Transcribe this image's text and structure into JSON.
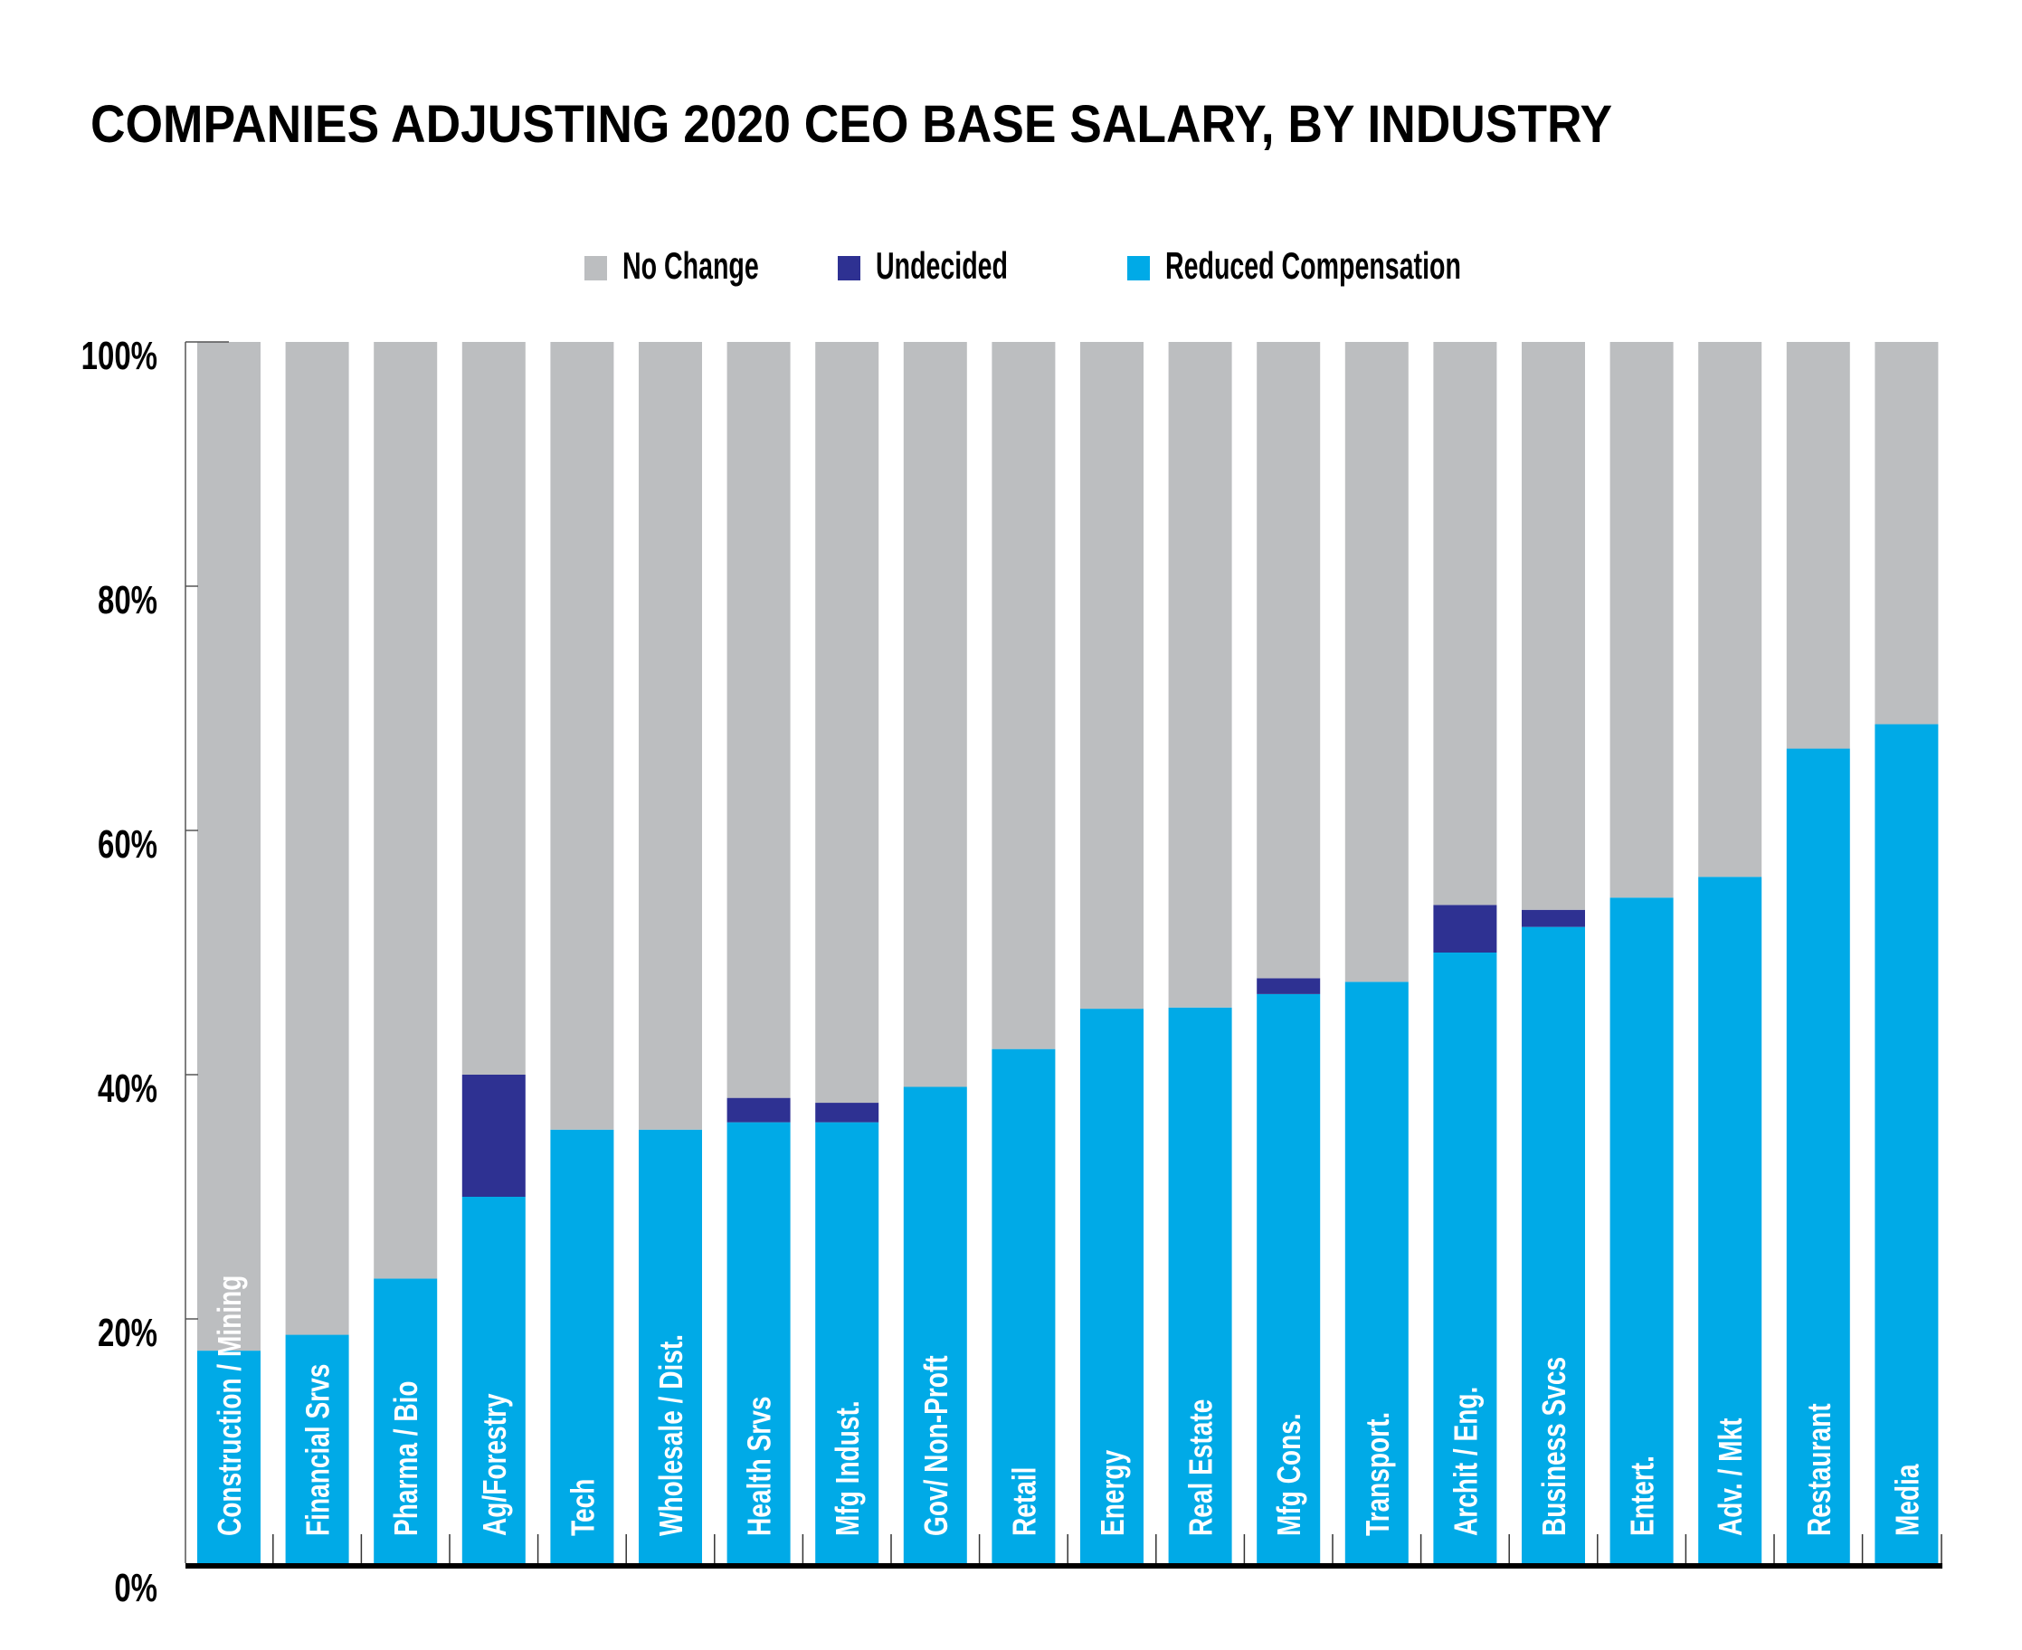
{
  "chart_data": {
    "type": "bar",
    "stacked": true,
    "orientation": "vertical",
    "title": "COMPANIES ADJUSTING 2020 CEO BASE SALARY, BY INDUSTRY",
    "xlabel": "",
    "ylabel": "",
    "ylim": [
      0,
      100
    ],
    "yticks": [
      0,
      20,
      40,
      60,
      80,
      100
    ],
    "ytick_labels": [
      "0%",
      "20%",
      "40%",
      "60%",
      "80%",
      "100%"
    ],
    "grid": false,
    "legend_position": "top-center",
    "categories": [
      "Construction / Mining",
      "Financial Srvs",
      "Pharma / Bio",
      "Ag/Forestry",
      "Tech",
      "Wholesale / Dist.",
      "Health Srvs",
      "Mfg Indust.",
      "Gov/ Non-Proft",
      "Retail",
      "Energy",
      "Real Estate",
      "Mfg Cons.",
      "Transport.",
      "Archit / Eng.",
      "Business Svcs",
      "Entert.",
      "Adv. / Mkt",
      "Restaurant",
      "Media"
    ],
    "series": [
      {
        "name": "Reduced Compensation",
        "color": "#00AAE7",
        "values": [
          17.4,
          18.7,
          23.3,
          30.0,
          35.5,
          35.5,
          36.1,
          36.1,
          39.0,
          42.1,
          45.4,
          45.5,
          46.6,
          47.6,
          50.0,
          52.1,
          54.5,
          56.2,
          66.7,
          68.7
        ]
      },
      {
        "name": "Undecided",
        "color": "#2E3192",
        "values": [
          0,
          0,
          0,
          10.0,
          0,
          0,
          2.0,
          1.6,
          0,
          0,
          0,
          0,
          1.3,
          0,
          3.9,
          1.4,
          0,
          0,
          0,
          0
        ]
      },
      {
        "name": "No Change",
        "color": "#BCBEC0",
        "values": [
          82.6,
          81.3,
          76.7,
          60.0,
          64.5,
          64.5,
          61.9,
          62.3,
          61.0,
          57.9,
          54.6,
          54.5,
          52.1,
          52.4,
          46.1,
          46.5,
          45.5,
          43.8,
          33.3,
          31.3
        ]
      }
    ],
    "legend": [
      {
        "name": "No Change",
        "color": "#BCBEC0"
      },
      {
        "name": "Undecided",
        "color": "#2E3192"
      },
      {
        "name": "Reduced Compensation",
        "color": "#00AAE7"
      }
    ]
  }
}
